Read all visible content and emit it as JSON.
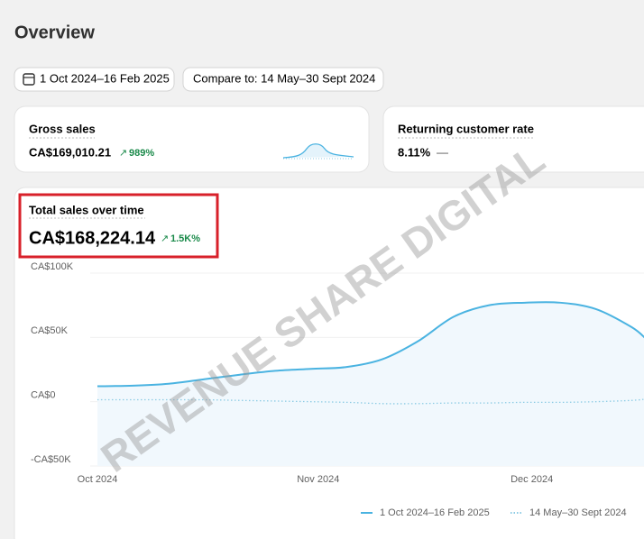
{
  "header": {
    "title": "Overview"
  },
  "filters": {
    "date_range": "1 Oct 2024–16 Feb 2025",
    "compare": "Compare to: 14 May–30 Sept 2024"
  },
  "cards": [
    {
      "label": "Gross sales",
      "value": "CA$169,010.21",
      "change": "989%"
    },
    {
      "label": "Returning customer rate",
      "value": "8.11%",
      "change": "—"
    }
  ],
  "watermark": "REVENUE SHARE DIGITAL",
  "chart_data": {
    "type": "line",
    "title": "Total sales over time",
    "total": "CA$168,224.14",
    "change": "1.5K%",
    "x": [
      0,
      5,
      10,
      15,
      20,
      25,
      30,
      35,
      40,
      45,
      50,
      55,
      60,
      65,
      70,
      75,
      77
    ],
    "xlim": [
      0,
      77
    ],
    "xticks": [
      {
        "value": 0,
        "label": "Oct 2024"
      },
      {
        "value": 31,
        "label": "Nov 2024"
      },
      {
        "value": 61,
        "label": "Dec 2024"
      }
    ],
    "ylim": [
      -50000,
      100000
    ],
    "yticks": [
      {
        "value": 100000,
        "label": "CA$100K"
      },
      {
        "value": 50000,
        "label": "CA$50K"
      },
      {
        "value": 0,
        "label": "CA$0"
      },
      {
        "value": -50000,
        "label": "-CA$50K"
      }
    ],
    "grid": true,
    "series": [
      {
        "name": "1 Oct 2024–16 Feb 2025",
        "color": "#4ab3e1",
        "style": "solid",
        "values": [
          12000,
          12500,
          14000,
          17500,
          21000,
          24000,
          25500,
          27000,
          33000,
          47000,
          66000,
          75000,
          77000,
          77000,
          72000,
          58000,
          49000
        ]
      },
      {
        "name": "14 May–30 Sept 2024",
        "color": "#8ccbe4",
        "style": "dotted",
        "values": [
          1500,
          1500,
          1500,
          1500,
          1000,
          500,
          0,
          -500,
          -1500,
          -1500,
          -1000,
          -1000,
          -500,
          -500,
          0,
          1000,
          2000
        ]
      }
    ]
  }
}
